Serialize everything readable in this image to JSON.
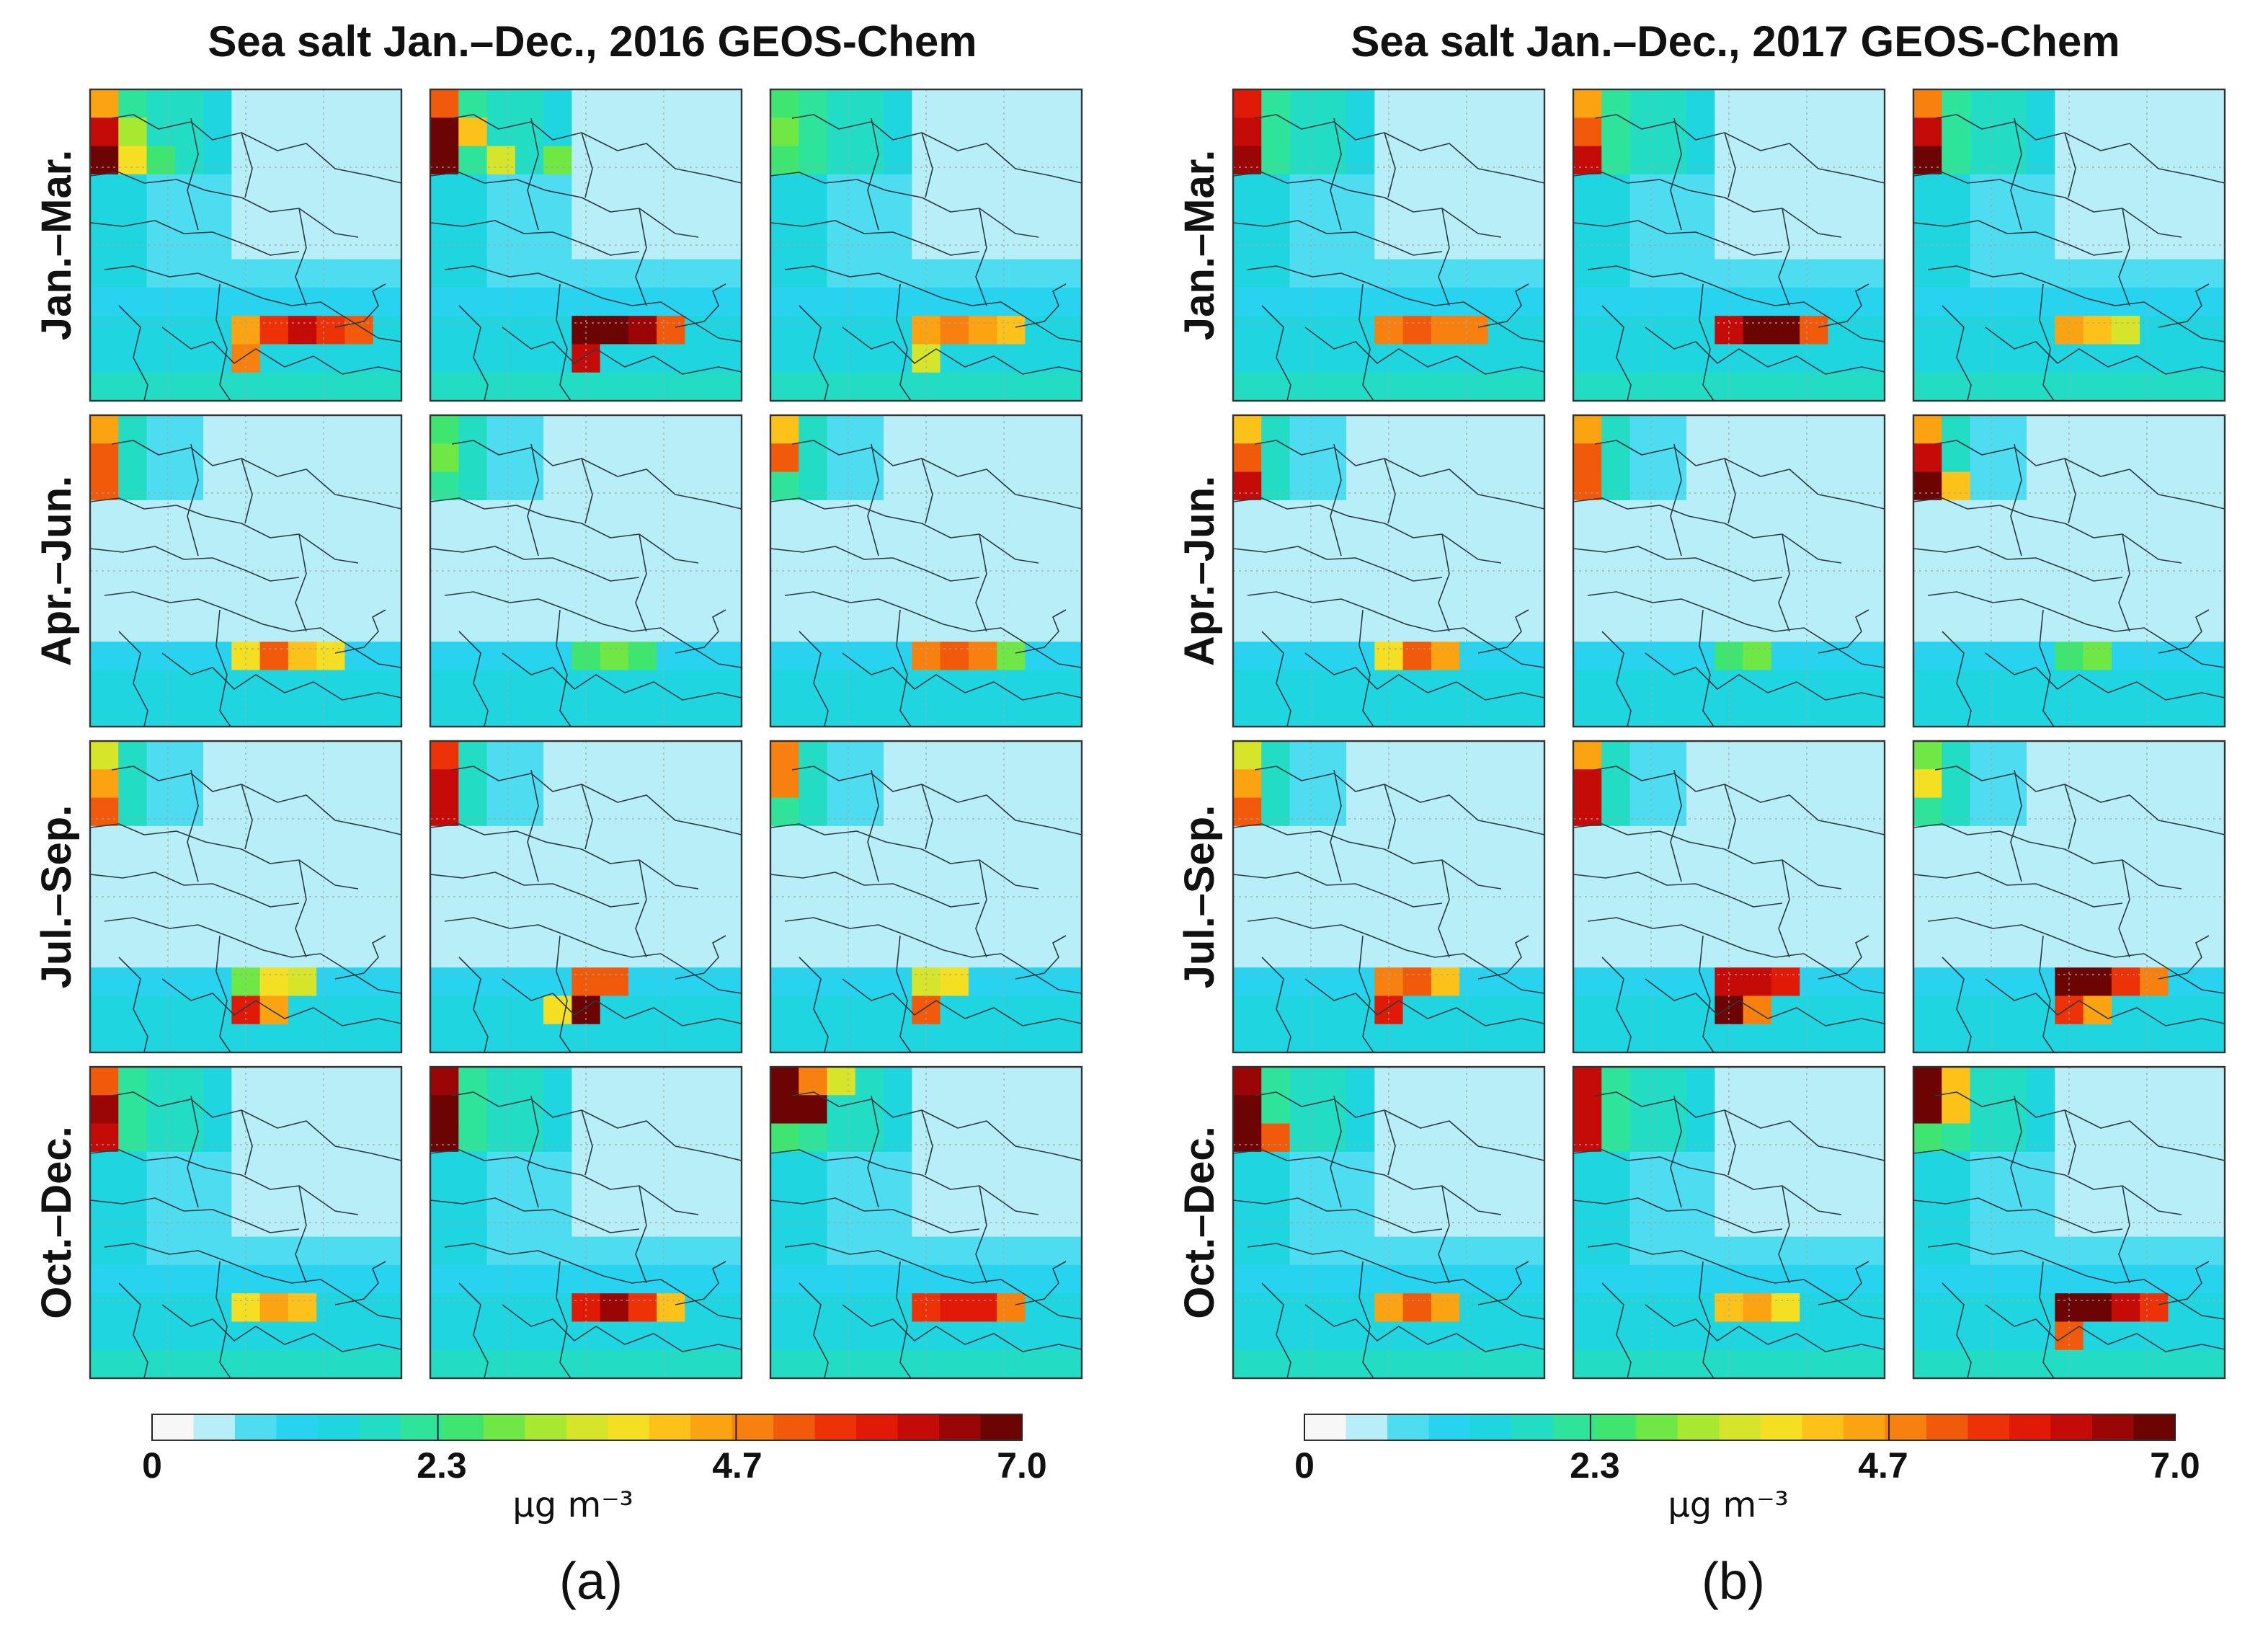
{
  "figure": {
    "panels": [
      {
        "title": "Sea salt Jan.–Dec., 2016 GEOS-Chem",
        "caption": "(a)"
      },
      {
        "title": "Sea salt Jan.–Dec., 2017 GEOS-Chem",
        "caption": "(b)"
      }
    ],
    "row_labels": [
      "Jan.–Mar.",
      "Apr.–Jun.",
      "Jul.–Sep.",
      "Oct.–Dec."
    ],
    "colorbar": {
      "tick_labels": [
        "0",
        "2.3",
        "4.7",
        "7.0"
      ],
      "unit_label": "μg m⁻³"
    }
  },
  "chart_data": {
    "type": "heatmap",
    "variable": "Sea salt",
    "model": "GEOS-Chem",
    "unit": "μg m⁻³",
    "value_range": [
      0,
      7.0
    ],
    "colorbar_ticks": [
      0,
      2.3,
      4.7,
      7.0
    ],
    "palette": [
      "#f7f7f7",
      "#b7eef7",
      "#4ddcf0",
      "#27d3ee",
      "#1fd6e0",
      "#22ddc4",
      "#2ee39a",
      "#3ee670",
      "#6fe845",
      "#a8e830",
      "#d6e52a",
      "#f4df22",
      "#fcc21a",
      "#fca312",
      "#f8800e",
      "#f25a0b",
      "#ed3208",
      "#e11a08",
      "#c40b08",
      "#9a0606",
      "#6c0404"
    ],
    "grid_columns": 11,
    "grid_rows": 11,
    "maps_2016": [
      {
        "season": "Jan.–Mar.",
        "month": 1,
        "hotspots": [
          {
            "col": 0,
            "row": 0,
            "value": 4.4
          },
          {
            "col": 0,
            "row": 1,
            "value": 6.1
          },
          {
            "col": 0,
            "row": 2,
            "value": 6.9
          },
          {
            "col": 1,
            "row": 1,
            "value": 3.0
          },
          {
            "col": 1,
            "row": 2,
            "value": 3.6
          },
          {
            "col": 2,
            "row": 2,
            "value": 2.2
          },
          {
            "col": 5,
            "row": 8,
            "value": 4.4
          },
          {
            "col": 5,
            "row": 9,
            "value": 4.6
          },
          {
            "col": 6,
            "row": 8,
            "value": 5.4
          },
          {
            "col": 7,
            "row": 8,
            "value": 6.0
          },
          {
            "col": 8,
            "row": 8,
            "value": 5.6
          },
          {
            "col": 9,
            "row": 8,
            "value": 4.9
          }
        ]
      },
      {
        "season": "Jan.–Mar.",
        "month": 2,
        "hotspots": [
          {
            "col": 0,
            "row": 0,
            "value": 5.2
          },
          {
            "col": 0,
            "row": 1,
            "value": 6.8
          },
          {
            "col": 0,
            "row": 2,
            "value": 6.9
          },
          {
            "col": 1,
            "row": 1,
            "value": 4.2
          },
          {
            "col": 2,
            "row": 2,
            "value": 3.4
          },
          {
            "col": 4,
            "row": 2,
            "value": 2.6
          },
          {
            "col": 5,
            "row": 8,
            "value": 6.9
          },
          {
            "col": 6,
            "row": 8,
            "value": 6.9
          },
          {
            "col": 7,
            "row": 8,
            "value": 6.4
          },
          {
            "col": 8,
            "row": 8,
            "value": 5.2
          },
          {
            "col": 5,
            "row": 9,
            "value": 6.2
          }
        ]
      },
      {
        "season": "Jan.–Mar.",
        "month": 3,
        "hotspots": [
          {
            "col": 0,
            "row": 1,
            "value": 2.5
          },
          {
            "col": 0,
            "row": 2,
            "value": 2.2
          },
          {
            "col": 5,
            "row": 8,
            "value": 4.4
          },
          {
            "col": 6,
            "row": 8,
            "value": 4.6
          },
          {
            "col": 7,
            "row": 8,
            "value": 4.4
          },
          {
            "col": 8,
            "row": 8,
            "value": 4.1
          },
          {
            "col": 5,
            "row": 9,
            "value": 3.2
          }
        ]
      },
      {
        "season": "Apr.–Jun.",
        "month": 4,
        "hotspots": [
          {
            "col": 0,
            "row": 0,
            "value": 4.4
          },
          {
            "col": 0,
            "row": 1,
            "value": 5.0
          },
          {
            "col": 0,
            "row": 2,
            "value": 4.9
          },
          {
            "col": 5,
            "row": 8,
            "value": 3.6
          },
          {
            "col": 6,
            "row": 8,
            "value": 5.0
          },
          {
            "col": 7,
            "row": 8,
            "value": 4.2
          },
          {
            "col": 8,
            "row": 8,
            "value": 3.8
          }
        ]
      },
      {
        "season": "Apr.–Jun.",
        "month": 5,
        "hotspots": [
          {
            "col": 0,
            "row": 0,
            "value": 2.2
          },
          {
            "col": 0,
            "row": 1,
            "value": 2.5
          },
          {
            "col": 5,
            "row": 8,
            "value": 2.4
          },
          {
            "col": 6,
            "row": 8,
            "value": 2.8
          },
          {
            "col": 7,
            "row": 8,
            "value": 2.4
          }
        ]
      },
      {
        "season": "Apr.–Jun.",
        "month": 6,
        "hotspots": [
          {
            "col": 0,
            "row": 0,
            "value": 4.2
          },
          {
            "col": 0,
            "row": 1,
            "value": 5.0
          },
          {
            "col": 5,
            "row": 8,
            "value": 4.8
          },
          {
            "col": 6,
            "row": 8,
            "value": 4.9
          },
          {
            "col": 7,
            "row": 8,
            "value": 4.7
          },
          {
            "col": 8,
            "row": 8,
            "value": 2.6
          }
        ]
      },
      {
        "season": "Jul.–Sep.",
        "month": 7,
        "hotspots": [
          {
            "col": 0,
            "row": 0,
            "value": 3.4
          },
          {
            "col": 0,
            "row": 1,
            "value": 4.3
          },
          {
            "col": 0,
            "row": 2,
            "value": 5.0
          },
          {
            "col": 5,
            "row": 8,
            "value": 2.6
          },
          {
            "col": 6,
            "row": 8,
            "value": 3.8
          },
          {
            "col": 7,
            "row": 8,
            "value": 3.5
          },
          {
            "col": 5,
            "row": 9,
            "value": 5.8
          },
          {
            "col": 6,
            "row": 9,
            "value": 4.3
          }
        ]
      },
      {
        "season": "Jul.–Sep.",
        "month": 8,
        "hotspots": [
          {
            "col": 0,
            "row": 0,
            "value": 5.4
          },
          {
            "col": 0,
            "row": 1,
            "value": 6.2
          },
          {
            "col": 0,
            "row": 2,
            "value": 6.2
          },
          {
            "col": 5,
            "row": 8,
            "value": 5.0
          },
          {
            "col": 6,
            "row": 8,
            "value": 4.9
          },
          {
            "col": 5,
            "row": 9,
            "value": 6.9
          },
          {
            "col": 4,
            "row": 9,
            "value": 3.6
          }
        ]
      },
      {
        "season": "Jul.–Sep.",
        "month": 9,
        "hotspots": [
          {
            "col": 0,
            "row": 0,
            "value": 4.6
          },
          {
            "col": 0,
            "row": 1,
            "value": 4.8
          },
          {
            "col": 5,
            "row": 8,
            "value": 3.2
          },
          {
            "col": 6,
            "row": 8,
            "value": 3.6
          },
          {
            "col": 5,
            "row": 9,
            "value": 4.9
          }
        ]
      },
      {
        "season": "Oct.–Dec.",
        "month": 10,
        "hotspots": [
          {
            "col": 0,
            "row": 0,
            "value": 5.2
          },
          {
            "col": 0,
            "row": 1,
            "value": 6.4
          },
          {
            "col": 0,
            "row": 2,
            "value": 6.3
          },
          {
            "col": 5,
            "row": 8,
            "value": 3.8
          },
          {
            "col": 6,
            "row": 8,
            "value": 4.3
          },
          {
            "col": 7,
            "row": 8,
            "value": 4.1
          }
        ]
      },
      {
        "season": "Oct.–Dec.",
        "month": 11,
        "hotspots": [
          {
            "col": 0,
            "row": 0,
            "value": 6.6
          },
          {
            "col": 0,
            "row": 1,
            "value": 6.8
          },
          {
            "col": 0,
            "row": 2,
            "value": 6.9
          },
          {
            "col": 5,
            "row": 8,
            "value": 5.8
          },
          {
            "col": 6,
            "row": 8,
            "value": 6.4
          },
          {
            "col": 7,
            "row": 8,
            "value": 5.6
          },
          {
            "col": 8,
            "row": 8,
            "value": 4.2
          }
        ]
      },
      {
        "season": "Oct.–Dec.",
        "month": 12,
        "hotspots": [
          {
            "col": 0,
            "row": 0,
            "value": 6.9
          },
          {
            "col": 0,
            "row": 1,
            "value": 6.9
          },
          {
            "col": 1,
            "row": 1,
            "value": 6.9
          },
          {
            "col": 1,
            "row": 0,
            "value": 4.6
          },
          {
            "col": 2,
            "row": 0,
            "value": 3.4
          },
          {
            "col": 5,
            "row": 8,
            "value": 5.4
          },
          {
            "col": 6,
            "row": 8,
            "value": 5.9
          },
          {
            "col": 7,
            "row": 8,
            "value": 5.8
          },
          {
            "col": 8,
            "row": 8,
            "value": 4.8
          }
        ]
      }
    ],
    "maps_2017": [
      {
        "season": "Jan.–Mar.",
        "month": 1,
        "hotspots": [
          {
            "col": 0,
            "row": 0,
            "value": 5.8
          },
          {
            "col": 0,
            "row": 1,
            "value": 6.2
          },
          {
            "col": 0,
            "row": 2,
            "value": 6.6
          },
          {
            "col": 5,
            "row": 8,
            "value": 4.8
          },
          {
            "col": 6,
            "row": 8,
            "value": 5.0
          },
          {
            "col": 7,
            "row": 8,
            "value": 4.8
          },
          {
            "col": 8,
            "row": 8,
            "value": 4.6
          }
        ]
      },
      {
        "season": "Jan.–Mar.",
        "month": 2,
        "hotspots": [
          {
            "col": 0,
            "row": 0,
            "value": 4.4
          },
          {
            "col": 0,
            "row": 1,
            "value": 5.0
          },
          {
            "col": 0,
            "row": 2,
            "value": 6.0
          },
          {
            "col": 5,
            "row": 8,
            "value": 6.2
          },
          {
            "col": 6,
            "row": 8,
            "value": 6.9
          },
          {
            "col": 7,
            "row": 8,
            "value": 6.9
          },
          {
            "col": 8,
            "row": 8,
            "value": 5.2
          }
        ]
      },
      {
        "season": "Jan.–Mar.",
        "month": 3,
        "hotspots": [
          {
            "col": 0,
            "row": 0,
            "value": 4.8
          },
          {
            "col": 0,
            "row": 1,
            "value": 6.1
          },
          {
            "col": 0,
            "row": 2,
            "value": 6.7
          },
          {
            "col": 5,
            "row": 8,
            "value": 4.5
          },
          {
            "col": 6,
            "row": 8,
            "value": 4.1
          },
          {
            "col": 7,
            "row": 8,
            "value": 3.5
          }
        ]
      },
      {
        "season": "Apr.–Jun.",
        "month": 4,
        "hotspots": [
          {
            "col": 0,
            "row": 0,
            "value": 4.1
          },
          {
            "col": 0,
            "row": 1,
            "value": 5.2
          },
          {
            "col": 0,
            "row": 2,
            "value": 6.0
          },
          {
            "col": 5,
            "row": 8,
            "value": 3.8
          },
          {
            "col": 6,
            "row": 8,
            "value": 5.2
          },
          {
            "col": 7,
            "row": 8,
            "value": 4.3
          }
        ]
      },
      {
        "season": "Apr.–Jun.",
        "month": 5,
        "hotspots": [
          {
            "col": 0,
            "row": 0,
            "value": 4.4
          },
          {
            "col": 0,
            "row": 1,
            "value": 5.0
          },
          {
            "col": 0,
            "row": 2,
            "value": 5.2
          },
          {
            "col": 5,
            "row": 8,
            "value": 2.4
          },
          {
            "col": 6,
            "row": 8,
            "value": 2.6
          }
        ]
      },
      {
        "season": "Apr.–Jun.",
        "month": 6,
        "hotspots": [
          {
            "col": 0,
            "row": 0,
            "value": 4.5
          },
          {
            "col": 0,
            "row": 1,
            "value": 6.0
          },
          {
            "col": 0,
            "row": 2,
            "value": 6.9
          },
          {
            "col": 1,
            "row": 2,
            "value": 4.2
          },
          {
            "col": 5,
            "row": 8,
            "value": 2.4
          },
          {
            "col": 6,
            "row": 8,
            "value": 2.6
          }
        ]
      },
      {
        "season": "Jul.–Sep.",
        "month": 7,
        "hotspots": [
          {
            "col": 0,
            "row": 0,
            "value": 3.4
          },
          {
            "col": 0,
            "row": 1,
            "value": 4.3
          },
          {
            "col": 0,
            "row": 2,
            "value": 5.0
          },
          {
            "col": 5,
            "row": 8,
            "value": 4.6
          },
          {
            "col": 6,
            "row": 8,
            "value": 4.9
          },
          {
            "col": 7,
            "row": 8,
            "value": 4.2
          },
          {
            "col": 5,
            "row": 9,
            "value": 5.8
          }
        ]
      },
      {
        "season": "Jul.–Sep.",
        "month": 8,
        "hotspots": [
          {
            "col": 0,
            "row": 0,
            "value": 4.4
          },
          {
            "col": 0,
            "row": 1,
            "value": 6.0
          },
          {
            "col": 0,
            "row": 2,
            "value": 6.1
          },
          {
            "col": 5,
            "row": 8,
            "value": 6.0
          },
          {
            "col": 6,
            "row": 8,
            "value": 6.2
          },
          {
            "col": 7,
            "row": 8,
            "value": 5.8
          },
          {
            "col": 5,
            "row": 9,
            "value": 6.9
          },
          {
            "col": 6,
            "row": 9,
            "value": 4.6
          }
        ]
      },
      {
        "season": "Jul.–Sep.",
        "month": 9,
        "hotspots": [
          {
            "col": 0,
            "row": 0,
            "value": 2.8
          },
          {
            "col": 0,
            "row": 1,
            "value": 3.6
          },
          {
            "col": 5,
            "row": 8,
            "value": 6.9
          },
          {
            "col": 6,
            "row": 8,
            "value": 6.9
          },
          {
            "col": 7,
            "row": 8,
            "value": 5.6
          },
          {
            "col": 8,
            "row": 8,
            "value": 4.6
          },
          {
            "col": 5,
            "row": 9,
            "value": 5.6
          },
          {
            "col": 6,
            "row": 9,
            "value": 4.5
          }
        ]
      },
      {
        "season": "Oct.–Dec.",
        "month": 10,
        "hotspots": [
          {
            "col": 0,
            "row": 0,
            "value": 6.4
          },
          {
            "col": 0,
            "row": 1,
            "value": 6.9
          },
          {
            "col": 0,
            "row": 2,
            "value": 6.9
          },
          {
            "col": 1,
            "row": 2,
            "value": 5.2
          },
          {
            "col": 5,
            "row": 8,
            "value": 4.5
          },
          {
            "col": 6,
            "row": 8,
            "value": 4.9
          },
          {
            "col": 7,
            "row": 8,
            "value": 4.5
          }
        ]
      },
      {
        "season": "Oct.–Dec.",
        "month": 11,
        "hotspots": [
          {
            "col": 0,
            "row": 0,
            "value": 6.0
          },
          {
            "col": 0,
            "row": 1,
            "value": 6.3
          },
          {
            "col": 0,
            "row": 2,
            "value": 6.3
          },
          {
            "col": 5,
            "row": 8,
            "value": 4.2
          },
          {
            "col": 6,
            "row": 8,
            "value": 4.3
          },
          {
            "col": 7,
            "row": 8,
            "value": 3.6
          }
        ]
      },
      {
        "season": "Oct.–Dec.",
        "month": 12,
        "hotspots": [
          {
            "col": 0,
            "row": 0,
            "value": 6.9
          },
          {
            "col": 0,
            "row": 1,
            "value": 6.9
          },
          {
            "col": 1,
            "row": 0,
            "value": 4.2
          },
          {
            "col": 1,
            "row": 1,
            "value": 4.0
          },
          {
            "col": 5,
            "row": 8,
            "value": 6.9
          },
          {
            "col": 6,
            "row": 8,
            "value": 6.9
          },
          {
            "col": 7,
            "row": 8,
            "value": 6.1
          },
          {
            "col": 8,
            "row": 8,
            "value": 5.6
          },
          {
            "col": 5,
            "row": 9,
            "value": 5.0
          }
        ]
      }
    ]
  }
}
